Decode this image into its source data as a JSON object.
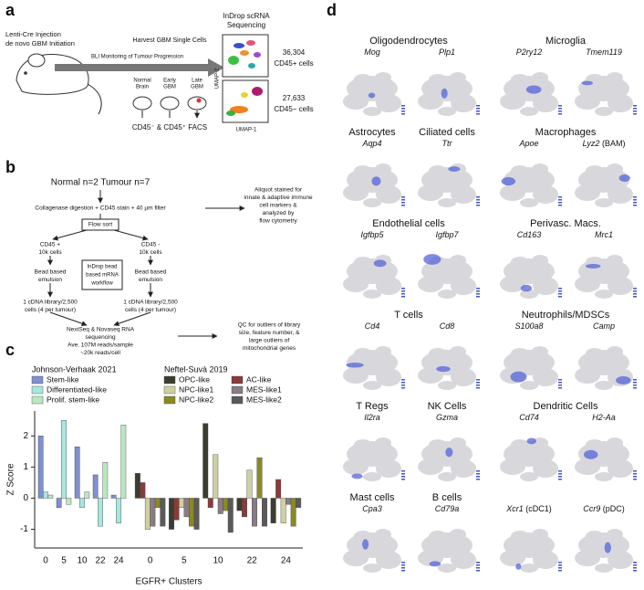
{
  "panel_a": {
    "label": "a",
    "injection": [
      "Lenti-Cre Injection",
      "de novo GBM Initiation"
    ],
    "monitoring": "BLI Monitoring of Tumour Progression",
    "harvest": "Harvest GBM Single Cells",
    "stages": [
      [
        "Normal",
        "Brain"
      ],
      [
        "Early",
        "GBM"
      ],
      [
        "Late",
        "GBM"
      ]
    ],
    "facs": "CD45⁻ & CD45⁺ FACS",
    "sequencing": [
      "InDrop scRNA",
      "Sequencing"
    ],
    "umap_y": "UMAP-2",
    "umap_x": "UMAP-1",
    "counts": [
      {
        "number": "36,304",
        "label": "CD45+ cells"
      },
      {
        "number": "27,633",
        "label": "CD45− cells"
      }
    ]
  },
  "panel_b": {
    "label": "b",
    "cohort": "Normal n=2 Tumour n=7",
    "digestion": "Collagenase digestion + CD45 stain + 40 µm filter",
    "aliquot": [
      "Aliquot stained for",
      "innate & adaptive immune",
      "cell markers &",
      "analyzed by",
      "flow cytometry"
    ],
    "flow_sort": "Flow sort",
    "branches": [
      {
        "cells": [
          "CD45 +",
          "10k cells"
        ],
        "emulsion": [
          "Bead based",
          "emulsion"
        ],
        "library": [
          "1 cDNA library/2,500",
          "cells (4 per tumour)"
        ]
      },
      {
        "cells": [
          "CD45 -",
          "10k cells"
        ],
        "emulsion": [
          "Bead based",
          "emulsion"
        ],
        "library": [
          "1 cDNA library/2,500",
          "cells (4 per tumour)"
        ]
      }
    ],
    "workflow": [
      "InDrop bead",
      "based mRNA",
      "workflow"
    ],
    "sequencing": [
      "NextSeq & Novaseq RNA",
      "sequencing",
      "Ave. 107M reads/sample",
      "~20k reads/cell"
    ],
    "qc": [
      "QC for outliers of library",
      "size, feature number, &",
      "large outliers of",
      "mitochondrial genes"
    ]
  },
  "panel_c": {
    "label": "c"
  },
  "chart_data": {
    "type": "bar",
    "y_label": "Z Score",
    "x_label": "EGFR+ Clusters",
    "categories": [
      "0",
      "5",
      "10",
      "22",
      "24"
    ],
    "ylim": [
      -1.6,
      2.8
    ],
    "yticks": [
      -1,
      0,
      1,
      2
    ],
    "groups": [
      {
        "name": "Johnson-Verhaak 2021",
        "series": [
          {
            "name": "Stem-like",
            "color": "#7f8fcf",
            "values": [
              2.0,
              -0.3,
              1.65,
              0.75,
              0.1
            ]
          },
          {
            "name": "Differentiated-like",
            "color": "#a8e6e0",
            "values": [
              0.2,
              2.5,
              -0.3,
              -0.9,
              -0.8
            ]
          },
          {
            "name": "Prolif. stem-like",
            "color": "#b9e8c0",
            "values": [
              0.1,
              -0.2,
              0.2,
              1.15,
              2.35
            ]
          }
        ]
      },
      {
        "name": "Neftel-Suvà 2019",
        "series": [
          {
            "name": "OPC-like",
            "color": "#3a3d30",
            "values": [
              0.8,
              -1.0,
              2.4,
              -0.4,
              -0.8
            ]
          },
          {
            "name": "AC-like",
            "color": "#8b3a3a",
            "values": [
              0.5,
              -0.7,
              -0.3,
              -0.6,
              0.6
            ]
          },
          {
            "name": "NPC-like1",
            "color": "#cfd0a0",
            "values": [
              -1.0,
              -0.3,
              1.4,
              0.9,
              -0.8
            ]
          },
          {
            "name": "MES-like1",
            "color": "#8a7a86",
            "values": [
              -0.9,
              -0.6,
              -0.5,
              -0.9,
              -0.2
            ]
          },
          {
            "name": "NPC-like2",
            "color": "#8a8a20",
            "values": [
              -0.3,
              -0.9,
              -0.4,
              1.3,
              -0.9
            ]
          },
          {
            "name": "MES-like2",
            "color": "#5a5a5a",
            "values": [
              -0.9,
              -1.0,
              -1.1,
              -0.9,
              -0.3
            ]
          }
        ]
      }
    ]
  },
  "panel_d": {
    "label": "d",
    "columns": [
      [
        {
          "title": "Oligodendrocytes",
          "panels": [
            {
              "gene": "Mog"
            },
            {
              "gene": "Plp1"
            }
          ]
        },
        {
          "panels": [
            {
              "title": "Astrocytes",
              "gene": "Aqp4"
            },
            {
              "title": "Ciliated cells",
              "gene": "Ttr"
            }
          ]
        },
        {
          "title": "Endothelial cells",
          "panels": [
            {
              "gene": "Igfbp5"
            },
            {
              "gene": "Igfbp7"
            }
          ]
        },
        {
          "title": "T cells",
          "panels": [
            {
              "gene": "Cd4"
            },
            {
              "gene": "Cd8"
            }
          ]
        },
        {
          "panels": [
            {
              "title": "T Regs",
              "gene": "Il2ra"
            },
            {
              "title": "NK Cells",
              "gene": "Gzma"
            }
          ]
        },
        {
          "panels": [
            {
              "title": "Mast cells",
              "gene": "Cpa3"
            },
            {
              "title": "B cells",
              "gene": "Cd79a"
            }
          ]
        }
      ],
      [
        {
          "title": "Microglia",
          "panels": [
            {
              "gene": "P2ry12"
            },
            {
              "gene": "Tmem119"
            }
          ]
        },
        {
          "title": "Macrophages",
          "panels": [
            {
              "gene": "Apoe"
            },
            {
              "gene": "Lyz2",
              "note": "(BAM)"
            }
          ]
        },
        {
          "title": "Perivasc. Macs.",
          "panels": [
            {
              "gene": "Cd163"
            },
            {
              "gene": "Mrc1"
            }
          ]
        },
        {
          "title": "Neutrophils/MDSCs",
          "panels": [
            {
              "gene": "S100a8"
            },
            {
              "gene": "Camp"
            }
          ]
        },
        {
          "title": "Dendritic Cells",
          "panels": [
            {
              "gene": "Cd74"
            },
            {
              "gene": "H2-Aa"
            }
          ]
        },
        {
          "panels": [
            {
              "gene": "Xcr1",
              "note": "(cDC1)"
            },
            {
              "gene": "Ccr9",
              "note": "(pDC)"
            }
          ]
        }
      ]
    ]
  }
}
